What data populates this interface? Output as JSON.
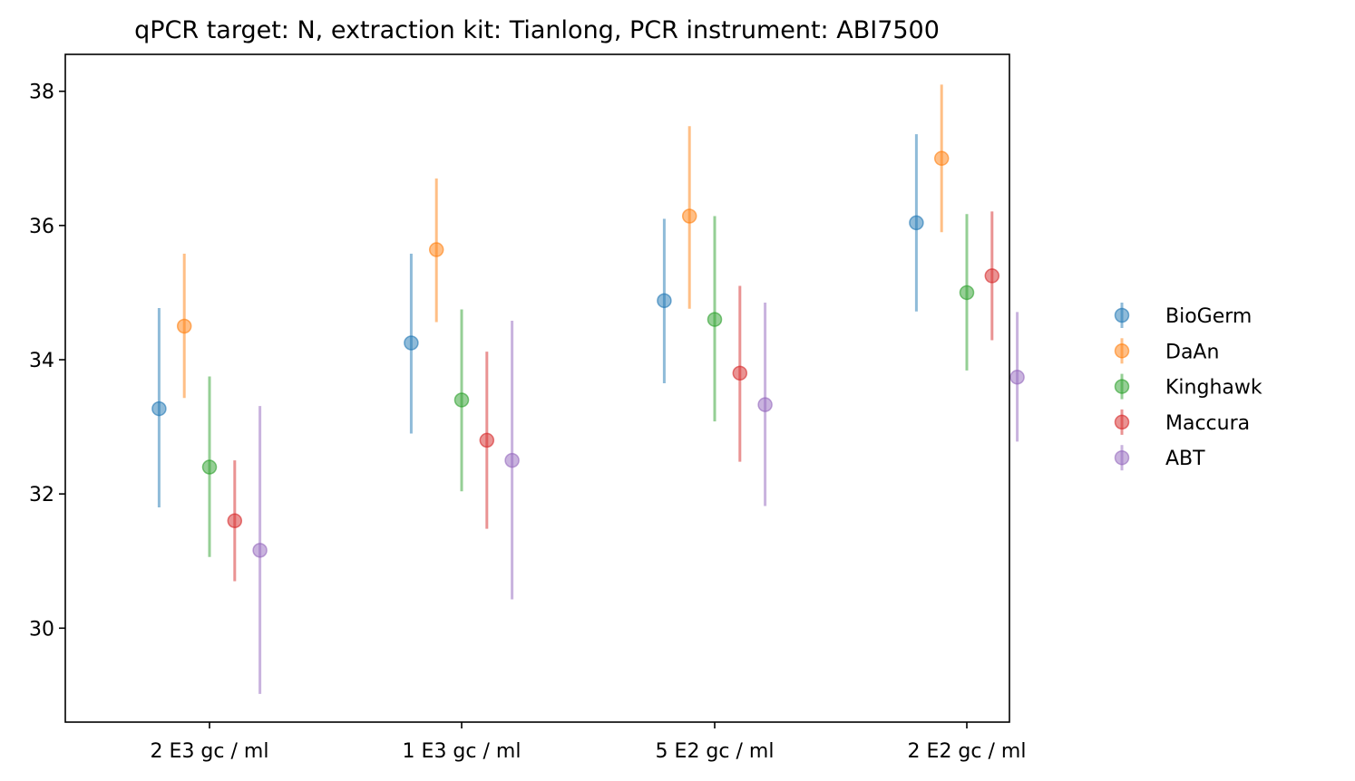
{
  "chart_data": {
    "type": "scatter",
    "title": "qPCR target: N, extraction kit: Tianlong, PCR instrument: ABI7500",
    "xlabel": "",
    "ylabel": "",
    "categories": [
      "2 E3 gc / ml",
      "1 E3 gc / ml",
      "5 E2 gc / ml",
      "2 E2 gc / ml"
    ],
    "ylim": [
      28.6,
      38.55
    ],
    "yticks": [
      30,
      32,
      34,
      36,
      38
    ],
    "grid": false,
    "legend_position": "right",
    "series": [
      {
        "name": "BioGerm",
        "color": "#1f77b4",
        "values": [
          33.27,
          34.25,
          34.88,
          36.04
        ],
        "lower": [
          31.8,
          32.9,
          33.65,
          34.72
        ],
        "upper": [
          34.77,
          35.58,
          36.1,
          37.36
        ]
      },
      {
        "name": "DaAn",
        "color": "#ff7f0e",
        "values": [
          34.5,
          35.64,
          36.14,
          37.0
        ],
        "lower": [
          33.43,
          34.56,
          34.76,
          35.9
        ],
        "upper": [
          35.58,
          36.7,
          37.48,
          38.1
        ]
      },
      {
        "name": "Kinghawk",
        "color": "#2ca02c",
        "values": [
          32.4,
          33.4,
          34.6,
          35.0
        ],
        "lower": [
          31.06,
          32.04,
          33.08,
          33.84
        ],
        "upper": [
          33.75,
          34.75,
          36.14,
          36.17
        ]
      },
      {
        "name": "Maccura",
        "color": "#d62728",
        "values": [
          31.6,
          32.8,
          33.8,
          35.25
        ],
        "lower": [
          30.7,
          31.48,
          32.48,
          34.29
        ],
        "upper": [
          32.5,
          34.12,
          35.1,
          36.21
        ]
      },
      {
        "name": "ABT",
        "color": "#9467bd",
        "values": [
          31.16,
          32.5,
          33.33,
          33.74
        ],
        "lower": [
          29.02,
          30.43,
          31.82,
          32.78
        ],
        "upper": [
          33.31,
          34.58,
          34.85,
          34.71
        ]
      }
    ]
  }
}
